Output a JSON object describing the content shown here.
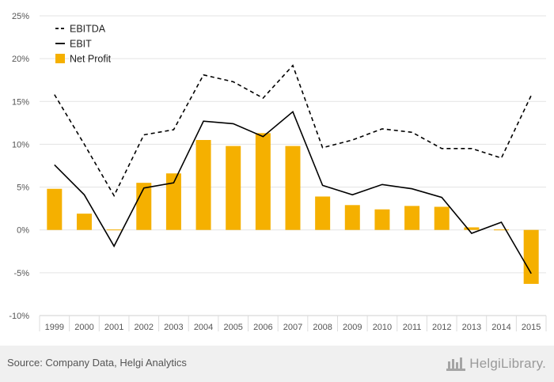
{
  "chart_data": {
    "type": "bar+line",
    "categories": [
      "1999",
      "2000",
      "2001",
      "2002",
      "2003",
      "2004",
      "2005",
      "2006",
      "2007",
      "2008",
      "2009",
      "2010",
      "2011",
      "2012",
      "2013",
      "2014",
      "2015"
    ],
    "series": [
      {
        "name": "EBITDA",
        "kind": "line",
        "style": "dashed",
        "color": "#000000",
        "values": [
          15.8,
          10.0,
          4.0,
          11.1,
          11.7,
          18.1,
          17.3,
          15.4,
          19.2,
          9.6,
          10.5,
          11.8,
          11.4,
          9.5,
          9.5,
          8.4,
          15.7
        ]
      },
      {
        "name": "EBIT",
        "kind": "line",
        "style": "solid",
        "color": "#000000",
        "values": [
          7.6,
          4.1,
          -1.9,
          4.9,
          5.5,
          12.7,
          12.4,
          10.9,
          13.8,
          5.2,
          4.1,
          5.3,
          4.8,
          3.8,
          -0.4,
          0.9,
          -5.1
        ]
      },
      {
        "name": "Net Profit",
        "kind": "bar",
        "color": "#f5b000",
        "values": [
          4.8,
          1.9,
          0.05,
          5.5,
          6.6,
          10.5,
          9.8,
          11.3,
          9.8,
          3.9,
          2.9,
          2.4,
          2.8,
          2.7,
          0.3,
          0.05,
          -6.3
        ]
      }
    ],
    "y_ticks": [
      "25%",
      "20%",
      "15%",
      "10%",
      "5%",
      "0%",
      "-5%",
      "-10%"
    ],
    "ylim": [
      -10,
      25
    ],
    "grid": true,
    "legend_position": "top-left"
  },
  "footer": {
    "source": "Source: Company Data, Helgi Analytics",
    "brand": "HelgiLibrary."
  }
}
